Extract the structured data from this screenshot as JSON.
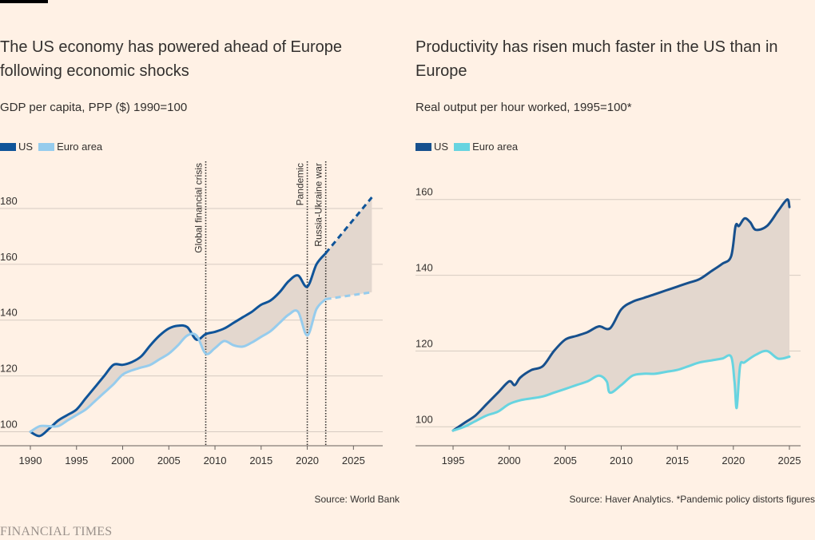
{
  "footer": {
    "brand": "FINANCIAL TIMES"
  },
  "colors": {
    "us_left": "#0f5499",
    "euro_left": "#96cced",
    "us_right": "#17508d",
    "euro_right": "#67d4e0",
    "gap_fill": "#e3d7ce",
    "grid": "#d6cbc2",
    "text": "#33302e"
  },
  "left": {
    "title": "The US economy has powered ahead of Europe following economic shocks",
    "subtitle": "GDP per capita, PPP ($) 1990=100",
    "legend": [
      "US",
      "Euro area"
    ],
    "source": "Source: World Bank"
  },
  "right": {
    "title": "Productivity has risen much faster in the US than in Europe",
    "subtitle": "Real output per hour worked, 1995=100*",
    "legend": [
      "US",
      "Euro area"
    ],
    "source": "Source: Haver Analytics. *Pandemic policy distorts figures"
  },
  "chart_data": [
    {
      "type": "line",
      "title": "The US economy has powered ahead of Europe following economic shocks",
      "subtitle": "GDP per capita, PPP ($) 1990=100",
      "xlim": [
        1990,
        2028
      ],
      "ylim": [
        95,
        190
      ],
      "x_ticks": [
        1990,
        1995,
        2000,
        2005,
        2010,
        2015,
        2020,
        2025
      ],
      "y_ticks": [
        100,
        120,
        140,
        160,
        180
      ],
      "projection_from": 2022,
      "annotations": [
        {
          "x": 2009,
          "label": "Global financial crisis"
        },
        {
          "x": 2020,
          "label": "Pandemic"
        },
        {
          "x": 2022,
          "label": "Russia-Ukraine war"
        }
      ],
      "series": [
        {
          "name": "US",
          "x": [
            1990,
            1991,
            1992,
            1993,
            1994,
            1995,
            1996,
            1997,
            1998,
            1999,
            2000,
            2001,
            2002,
            2003,
            2004,
            2005,
            2006,
            2007,
            2008,
            2009,
            2010,
            2011,
            2012,
            2013,
            2014,
            2015,
            2016,
            2017,
            2018,
            2019,
            2020,
            2021,
            2022,
            2023,
            2024,
            2025,
            2026,
            2027
          ],
          "values": [
            100,
            98.5,
            101,
            104,
            106,
            108,
            112,
            116,
            120,
            124,
            124,
            125,
            127,
            131,
            134.5,
            137,
            138,
            137.5,
            133,
            135,
            135.8,
            137,
            139,
            141,
            143,
            145.5,
            147,
            150,
            154,
            156,
            152,
            160,
            164,
            168,
            172,
            176,
            180,
            184
          ]
        },
        {
          "name": "Euro area",
          "x": [
            1990,
            1991,
            1992,
            1993,
            1994,
            1995,
            1996,
            1997,
            1998,
            1999,
            2000,
            2001,
            2002,
            2003,
            2004,
            2005,
            2006,
            2007,
            2008,
            2009,
            2010,
            2011,
            2012,
            2013,
            2014,
            2015,
            2016,
            2017,
            2018,
            2019,
            2020,
            2021,
            2022,
            2023,
            2024,
            2025,
            2026,
            2027
          ],
          "values": [
            100,
            102,
            102,
            102,
            104,
            106,
            108,
            111,
            114,
            117,
            120.5,
            122,
            123,
            124,
            126,
            128,
            131,
            134.5,
            134.5,
            128,
            130,
            132.5,
            131,
            130.5,
            132,
            134,
            136,
            139,
            142,
            143,
            134.5,
            144,
            147.5,
            148,
            148.5,
            149,
            149.5,
            150
          ]
        }
      ]
    },
    {
      "type": "line",
      "title": "Productivity has risen much faster in the US than in Europe",
      "subtitle": "Real output per hour worked, 1995=100*",
      "xlim": [
        1994,
        2026
      ],
      "ylim": [
        95,
        165
      ],
      "x_ticks": [
        1995,
        2000,
        2005,
        2010,
        2015,
        2020,
        2025
      ],
      "y_ticks": [
        100,
        120,
        140,
        160
      ],
      "series": [
        {
          "name": "US",
          "x": [
            1995,
            1996,
            1997,
            1998,
            1999,
            2000,
            2000.5,
            2001,
            2002,
            2003,
            2004,
            2005,
            2006,
            2007,
            2008,
            2009,
            2010,
            2011,
            2012,
            2013,
            2014,
            2015,
            2016,
            2017,
            2018,
            2019,
            2019.8,
            2020.2,
            2020.5,
            2021,
            2021.5,
            2022,
            2023,
            2024,
            2024.8,
            2025
          ],
          "values": [
            99,
            101,
            103,
            106,
            109,
            112,
            111,
            113,
            115,
            116,
            120,
            123,
            124,
            125,
            126.5,
            126,
            131,
            133,
            134,
            135,
            136,
            137,
            138,
            139,
            141,
            143,
            145,
            153,
            153,
            155,
            154,
            152,
            153,
            157,
            160,
            158
          ]
        },
        {
          "name": "Euro area",
          "x": [
            1995,
            1996,
            1997,
            1998,
            1999,
            2000,
            2001,
            2002,
            2003,
            2004,
            2005,
            2006,
            2007,
            2008,
            2008.7,
            2009,
            2010,
            2011,
            2012,
            2013,
            2014,
            2015,
            2016,
            2017,
            2018,
            2019,
            2019.8,
            2020.1,
            2020.3,
            2020.6,
            2021,
            2022,
            2023,
            2024,
            2025
          ],
          "values": [
            99,
            100,
            101.5,
            103,
            104,
            106,
            107,
            107.5,
            108,
            109,
            110,
            111,
            112,
            113.5,
            112,
            109,
            111,
            113.5,
            114,
            114,
            114.5,
            115,
            116,
            117,
            117.5,
            118,
            118.5,
            112,
            105,
            116,
            117,
            119,
            120,
            118,
            118.5
          ]
        }
      ]
    }
  ]
}
